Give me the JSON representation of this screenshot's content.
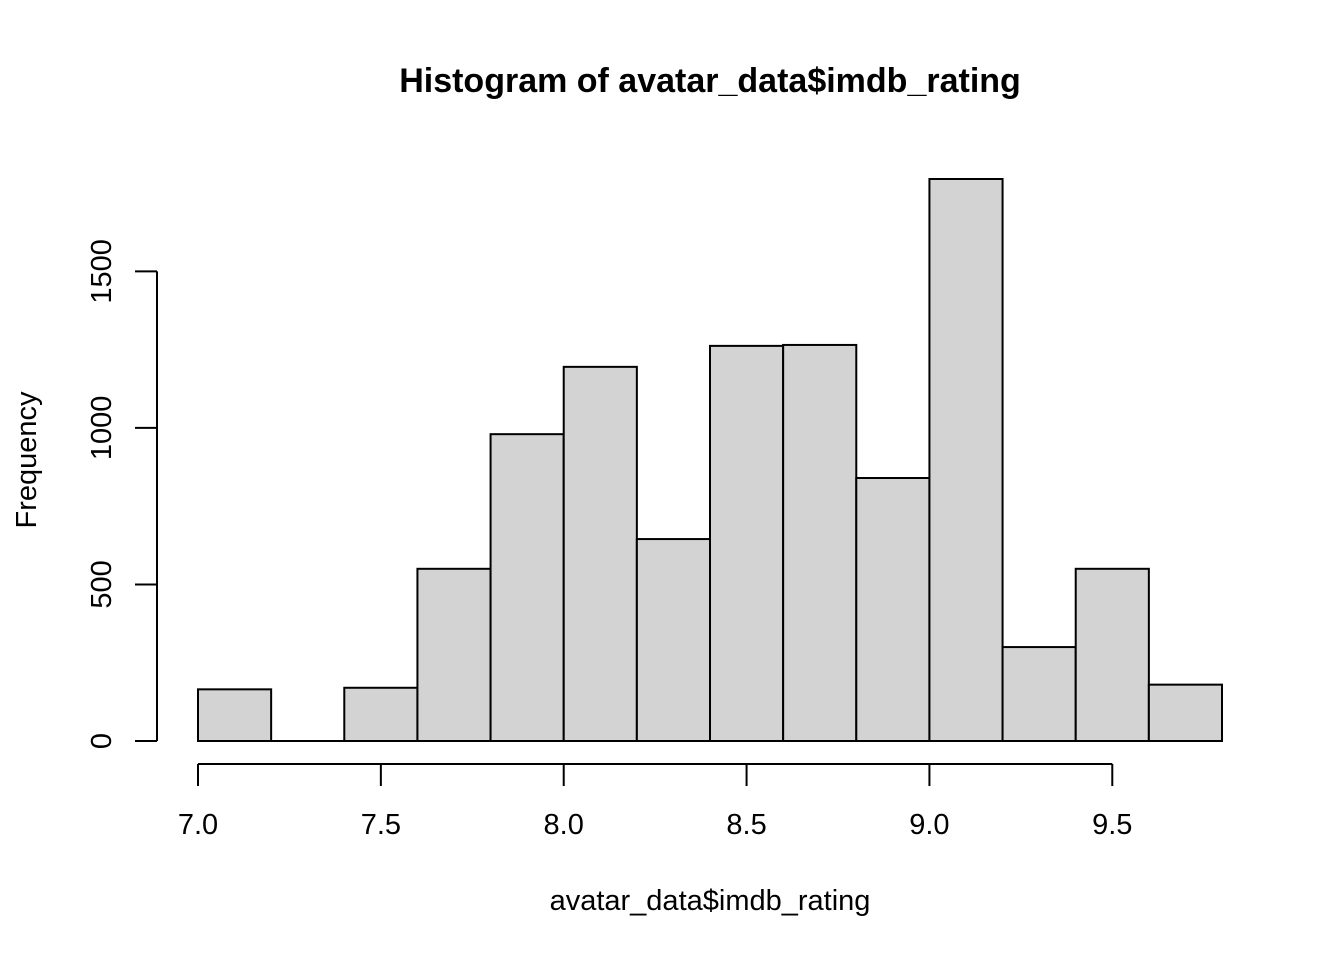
{
  "chart_data": {
    "type": "bar",
    "title": "Histogram of avatar_data$imdb_rating",
    "xlabel": "avatar_data$imdb_rating",
    "ylabel": "Frequency",
    "bins": [
      {
        "start": 7.0,
        "end": 7.2,
        "count": 165
      },
      {
        "start": 7.2,
        "end": 7.4,
        "count": 0
      },
      {
        "start": 7.4,
        "end": 7.6,
        "count": 170
      },
      {
        "start": 7.6,
        "end": 7.8,
        "count": 550
      },
      {
        "start": 7.8,
        "end": 8.0,
        "count": 980
      },
      {
        "start": 8.0,
        "end": 8.2,
        "count": 1195
      },
      {
        "start": 8.2,
        "end": 8.4,
        "count": 645
      },
      {
        "start": 8.4,
        "end": 8.6,
        "count": 1262
      },
      {
        "start": 8.6,
        "end": 8.8,
        "count": 1265
      },
      {
        "start": 8.8,
        "end": 9.0,
        "count": 840
      },
      {
        "start": 9.0,
        "end": 9.2,
        "count": 1795
      },
      {
        "start": 9.2,
        "end": 9.4,
        "count": 300
      },
      {
        "start": 9.4,
        "end": 9.6,
        "count": 550
      },
      {
        "start": 9.6,
        "end": 9.8,
        "count": 180
      }
    ],
    "xticks": [
      "7.0",
      "7.5",
      "8.0",
      "8.5",
      "9.0",
      "9.5"
    ],
    "yticks": [
      "0",
      "500",
      "1000",
      "1500"
    ],
    "xlim": [
      7.0,
      9.8
    ],
    "ylim": [
      0,
      1795
    ],
    "grid": false,
    "bar_fill": "#d3d3d3",
    "bar_stroke": "#000000"
  }
}
